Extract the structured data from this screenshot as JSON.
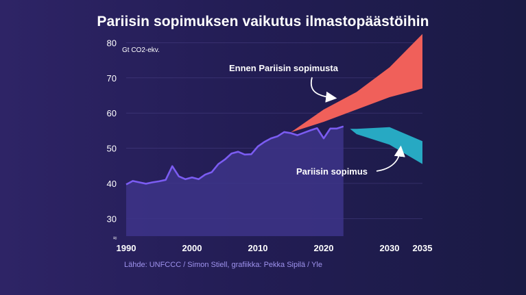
{
  "title": "Pariisin sopimuksen vaikutus ilmastopäästöihin",
  "source": "Lähde: UNFCCC / Simon Stiell, grafiikka: Pekka Sipilä / Yle",
  "colors": {
    "history_line": "#7b5cf2",
    "history_fill": "#3d3488",
    "before_paris": "#f0605a",
    "paris": "#27a9c3"
  },
  "chart_data": {
    "type": "area",
    "ylabel": "Gt CO2-ekv.",
    "ylim": [
      25,
      83
    ],
    "xlim": [
      1990,
      2035
    ],
    "y_ticks": [
      30,
      40,
      50,
      60,
      70,
      80
    ],
    "x_ticks": [
      1990,
      2000,
      2010,
      2020,
      2030,
      2035
    ],
    "grid": true,
    "history": {
      "x": [
        1990,
        1991,
        1992,
        1993,
        1994,
        1995,
        1996,
        1997,
        1998,
        1999,
        2000,
        2001,
        2002,
        2003,
        2004,
        2005,
        2006,
        2007,
        2008,
        2009,
        2010,
        2011,
        2012,
        2013,
        2014,
        2015,
        2016,
        2017,
        2018,
        2019,
        2020,
        2021,
        2022,
        2023
      ],
      "y": [
        39.7,
        40.7,
        40.3,
        39.9,
        40.3,
        40.6,
        41.0,
        44.9,
        42.0,
        41.2,
        41.7,
        41.2,
        42.5,
        43.2,
        45.5,
        46.8,
        48.5,
        49.0,
        48.2,
        48.3,
        50.5,
        51.8,
        52.8,
        53.4,
        54.6,
        54.3,
        53.7,
        54.4,
        55.1,
        55.7,
        52.8,
        55.6,
        55.6,
        56.2
      ]
    },
    "scenarios": [
      {
        "name": "Ennen Pariisin sopimusta",
        "x": [
          2015,
          2020,
          2025,
          2030,
          2035
        ],
        "upper": [
          54.5,
          61.0,
          66.0,
          73.0,
          82.5
        ],
        "lower": [
          54.5,
          57.5,
          61.0,
          64.5,
          67.0
        ]
      },
      {
        "name": "Pariisin sopimus",
        "x": [
          2024,
          2025,
          2030,
          2035
        ],
        "upper": [
          55.5,
          55.5,
          56.0,
          52.0
        ],
        "lower": [
          55.5,
          54.0,
          51.0,
          45.5
        ]
      }
    ]
  }
}
